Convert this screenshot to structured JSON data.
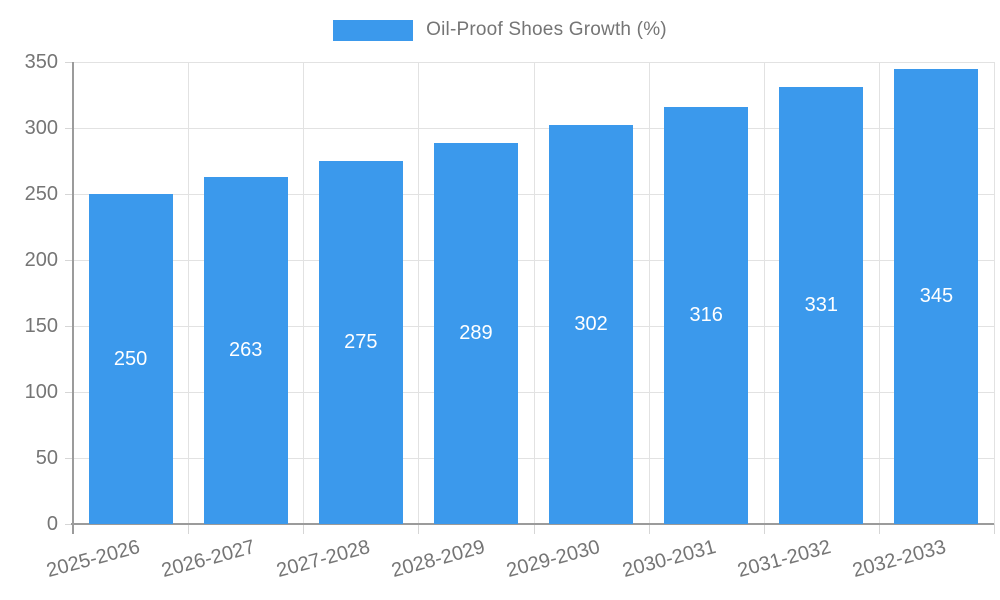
{
  "legend": {
    "label": "Oil-Proof Shoes Growth (%)"
  },
  "chart_data": {
    "type": "bar",
    "title": "Oil-Proof Shoes Growth (%)",
    "categories": [
      "2025-2026",
      "2026-2027",
      "2027-2028",
      "2028-2029",
      "2029-2030",
      "2030-2031",
      "2031-2032",
      "2032-2033"
    ],
    "values": [
      250,
      263,
      275,
      289,
      302,
      316,
      331,
      345
    ],
    "bar_labels": [
      "250",
      "263",
      "275",
      "289",
      "302",
      "316",
      "331",
      "345"
    ],
    "xlabel": "",
    "ylabel": "",
    "ylim": [
      0,
      350
    ],
    "yticks": [
      0,
      50,
      100,
      150,
      200,
      250,
      300,
      350
    ],
    "grid": true,
    "legend_position": "top-center",
    "colors": {
      "bar": "#3B99EC",
      "bar_label": "#FFFFFF",
      "gridline": "#E2E2E2",
      "axis": "#9B9B9B",
      "tick_text": "#757575",
      "background": "#FFFFFF"
    }
  }
}
